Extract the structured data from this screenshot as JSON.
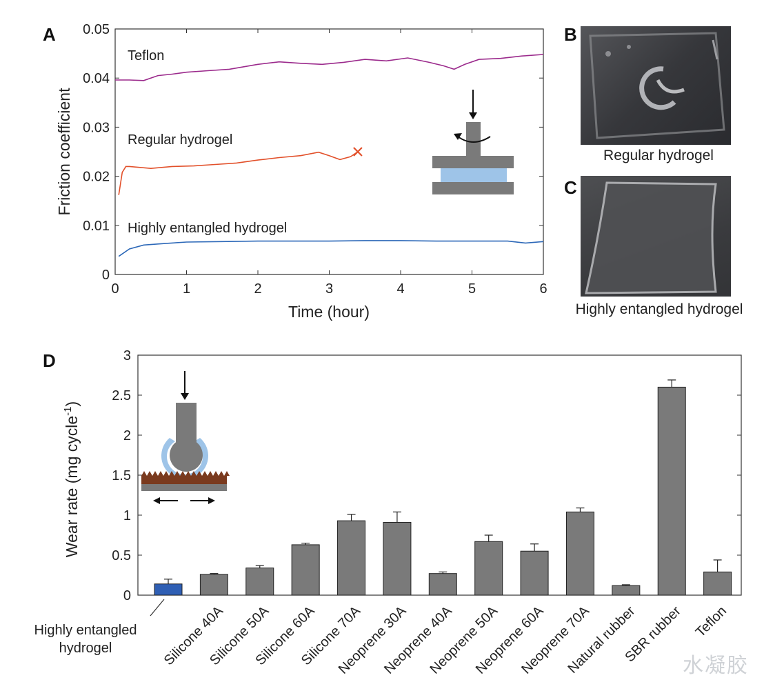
{
  "panels": {
    "a": "A",
    "b": "B",
    "c": "C",
    "d": "D"
  },
  "photos": [
    {
      "caption": "Regular hydrogel"
    },
    {
      "caption": "Highly entangled hydrogel"
    }
  ],
  "watermark": "水凝胶",
  "colors": {
    "teflon": "#9b2a8c",
    "regular": "#e2502a",
    "entangled": "#2c68b8",
    "bar_gray": "#7a7a7a",
    "bar_blue": "#2f5fb4",
    "gel_blue": "#9ec4e8",
    "rough": "#7a3a1e"
  },
  "chart_data": [
    {
      "type": "line",
      "xlabel": "Time (hour)",
      "ylabel": "Friction coefficient",
      "xlim": [
        0,
        6
      ],
      "ylim": [
        0,
        0.05
      ],
      "xticks": [
        "0",
        "1",
        "2",
        "3",
        "4",
        "5",
        "6"
      ],
      "yticks": [
        "0",
        "0.01",
        "0.02",
        "0.03",
        "0.04",
        "0.05"
      ],
      "series": [
        {
          "name": "Teflon",
          "color": "#9b2a8c",
          "x": [
            0,
            0.2,
            0.4,
            0.6,
            0.8,
            1.0,
            1.3,
            1.6,
            2.0,
            2.3,
            2.6,
            2.9,
            3.2,
            3.5,
            3.8,
            4.1,
            4.4,
            4.6,
            4.75,
            4.9,
            5.1,
            5.4,
            5.7,
            6.0
          ],
          "y": [
            0.0396,
            0.0396,
            0.0395,
            0.0405,
            0.0408,
            0.0412,
            0.0415,
            0.0418,
            0.0428,
            0.0433,
            0.043,
            0.0428,
            0.0432,
            0.0438,
            0.0435,
            0.0441,
            0.0432,
            0.0425,
            0.0418,
            0.0428,
            0.0438,
            0.044,
            0.0445,
            0.0448
          ]
        },
        {
          "name": "Regular hydrogel",
          "color": "#e2502a",
          "x": [
            0.05,
            0.1,
            0.15,
            0.2,
            0.5,
            0.8,
            1.1,
            1.4,
            1.7,
            2.0,
            2.3,
            2.6,
            2.85,
            3.0,
            3.15,
            3.3,
            3.4
          ],
          "y": [
            0.0162,
            0.0208,
            0.022,
            0.022,
            0.0216,
            0.022,
            0.0221,
            0.0224,
            0.0227,
            0.0233,
            0.0238,
            0.0242,
            0.0249,
            0.0242,
            0.0234,
            0.024,
            0.025
          ],
          "end_marker": "x"
        },
        {
          "name": "Highly entangled hydrogel",
          "color": "#2c68b8",
          "x": [
            0.05,
            0.2,
            0.4,
            0.7,
            1.0,
            1.5,
            2.0,
            2.5,
            3.0,
            3.5,
            4.0,
            4.5,
            5.0,
            5.5,
            5.75,
            6.0
          ],
          "y": [
            0.0037,
            0.0052,
            0.006,
            0.0063,
            0.0066,
            0.0067,
            0.0068,
            0.0068,
            0.0068,
            0.0069,
            0.0069,
            0.0068,
            0.0068,
            0.0068,
            0.0064,
            0.0067
          ]
        }
      ]
    },
    {
      "type": "bar",
      "ylabel": "Wear rate (mg cycle",
      "ylabel_sup": "-1",
      "ylabel_end": ")",
      "ylim": [
        0,
        3
      ],
      "yticks": [
        "0",
        "0.5",
        "1",
        "1.5",
        "2",
        "2.5",
        "3"
      ],
      "categories": [
        "Highly entangled hydrogel",
        "Silicone 40A",
        "Silicone 50A",
        "Silicone 60A",
        "Silicone 70A",
        "Neoprene 30A",
        "Neoprene 40A",
        "Neoprene 50A",
        "Neoprene 60A",
        "Neoprene 70A",
        "Natural rubber",
        "SBR rubber",
        "Teflon"
      ],
      "first_label_lines": [
        "Highly entangled",
        "hydrogel"
      ],
      "values": [
        0.14,
        0.26,
        0.34,
        0.63,
        0.93,
        0.91,
        0.27,
        0.67,
        0.55,
        1.04,
        0.12,
        2.6,
        0.29
      ],
      "errors": [
        0.06,
        0.01,
        0.03,
        0.02,
        0.08,
        0.13,
        0.02,
        0.08,
        0.09,
        0.05,
        0.01,
        0.09,
        0.15
      ]
    }
  ]
}
